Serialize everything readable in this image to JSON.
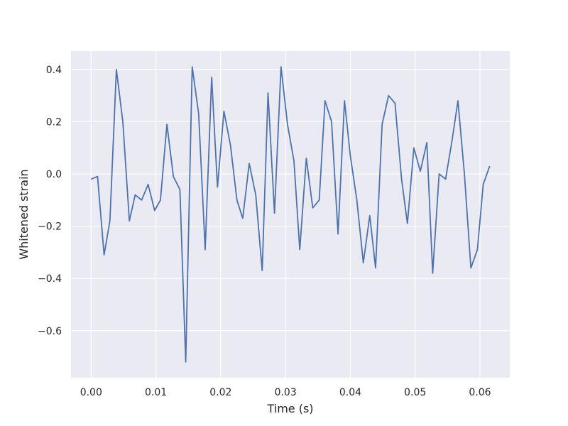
{
  "chart_data": {
    "type": "line",
    "title": "",
    "xlabel": "Time (s)",
    "ylabel": "Whitened strain",
    "xlim": [
      -0.0031,
      0.0646
    ],
    "ylim": [
      -0.78,
      0.47
    ],
    "grid": true,
    "colors": {
      "background": "#eaeaf2",
      "grid": "#ffffff",
      "line": "#4c72b0",
      "text": "#262626"
    },
    "xticks": [
      {
        "value": 0.0,
        "label": "0.00"
      },
      {
        "value": 0.01,
        "label": "0.01"
      },
      {
        "value": 0.02,
        "label": "0.02"
      },
      {
        "value": 0.03,
        "label": "0.03"
      },
      {
        "value": 0.04,
        "label": "0.04"
      },
      {
        "value": 0.05,
        "label": "0.05"
      },
      {
        "value": 0.06,
        "label": "0.06"
      }
    ],
    "yticks": [
      {
        "value": 0.4,
        "label": "0.4"
      },
      {
        "value": 0.2,
        "label": "0.2"
      },
      {
        "value": 0.0,
        "label": "0.0"
      },
      {
        "value": -0.2,
        "label": "−0.2"
      },
      {
        "value": -0.4,
        "label": "−0.4"
      },
      {
        "value": -0.6,
        "label": "−0.6"
      }
    ],
    "series": [
      {
        "x": [
          0.0,
          0.001,
          0.002,
          0.0029,
          0.0039,
          0.0049,
          0.0059,
          0.0068,
          0.0078,
          0.0088,
          0.0098,
          0.0107,
          0.0117,
          0.0127,
          0.0137,
          0.0146,
          0.0156,
          0.0166,
          0.0176,
          0.0186,
          0.0195,
          0.0205,
          0.0215,
          0.0225,
          0.0234,
          0.0244,
          0.0254,
          0.0264,
          0.0273,
          0.0283,
          0.0293,
          0.0303,
          0.0313,
          0.0322,
          0.0332,
          0.0342,
          0.0352,
          0.0361,
          0.0371,
          0.0381,
          0.0391,
          0.04,
          0.041,
          0.042,
          0.043,
          0.0439,
          0.0449,
          0.0459,
          0.0469,
          0.0479,
          0.0488,
          0.0498,
          0.0508,
          0.0518,
          0.0527,
          0.0537,
          0.0547,
          0.0557,
          0.0566,
          0.0576,
          0.0586,
          0.0596,
          0.0605,
          0.0615
        ],
        "y": [
          -0.02,
          -0.01,
          -0.31,
          -0.18,
          0.4,
          0.2,
          -0.18,
          -0.08,
          -0.1,
          -0.04,
          -0.14,
          -0.1,
          0.19,
          -0.01,
          -0.06,
          -0.72,
          0.41,
          0.23,
          -0.29,
          0.37,
          -0.05,
          0.24,
          0.11,
          -0.1,
          -0.17,
          0.04,
          -0.08,
          -0.37,
          0.31,
          -0.15,
          0.41,
          0.19,
          0.05,
          -0.29,
          0.06,
          -0.13,
          -0.1,
          0.28,
          0.2,
          -0.23,
          0.28,
          0.07,
          -0.1,
          -0.34,
          -0.16,
          -0.36,
          0.19,
          0.3,
          0.27,
          -0.02,
          -0.19,
          0.1,
          0.01,
          0.12,
          -0.38,
          0.0,
          -0.02,
          0.13,
          0.28,
          0.0,
          -0.36,
          -0.29,
          -0.04,
          0.03
        ]
      }
    ]
  }
}
